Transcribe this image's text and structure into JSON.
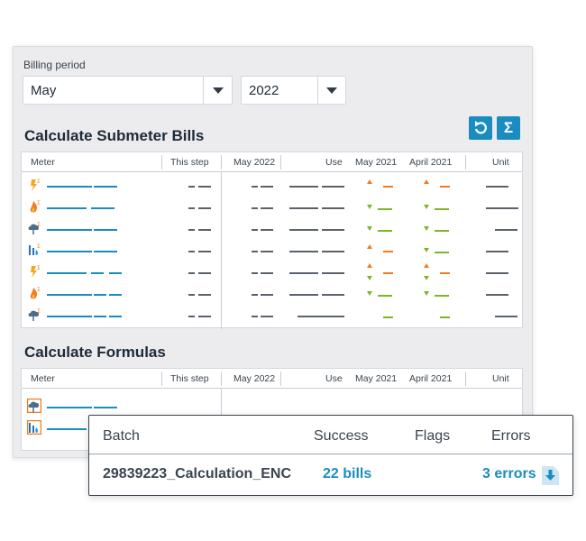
{
  "billing_period": {
    "label": "Billing period",
    "month": "May",
    "year": "2022"
  },
  "submeter_section": {
    "title": "Calculate Submeter Bills",
    "buttons": [
      {
        "name": "recalculate",
        "icon": "refresh-icon"
      },
      {
        "name": "sum",
        "icon": "sigma-icon",
        "glyph": "Σ"
      }
    ],
    "columns": [
      "Meter",
      "This step",
      "May 2022",
      "Use",
      "May 2021",
      "April 2021",
      "Unit"
    ],
    "rows": [
      {
        "icon": "electric-meter-sigma-icon",
        "may2021_trend": "up",
        "april2021_trend": "up"
      },
      {
        "icon": "gas-meter-sigma-icon",
        "may2021_trend": "down",
        "april2021_trend": "down"
      },
      {
        "icon": "cloud-meter-sigma-icon",
        "may2021_trend": "down",
        "april2021_trend": "down"
      },
      {
        "icon": "water-meter-sigma-icon",
        "may2021_trend": "up",
        "april2021_trend": "down"
      },
      {
        "icon": "electric-meter-sigma-icon",
        "may2021_trend": "up-down",
        "april2021_trend": "up-down"
      },
      {
        "icon": "gas-meter-sigma-icon",
        "may2021_trend": "down",
        "april2021_trend": "down"
      },
      {
        "icon": "cloud-meter-sigma-icon",
        "may2021_trend": "none",
        "april2021_trend": "none"
      }
    ]
  },
  "formulas_section": {
    "title": "Calculate Formulas",
    "columns": [
      "Meter",
      "This step",
      "May 2022",
      "Use",
      "May 2021",
      "April 2021",
      "Unit"
    ],
    "rows": [
      {
        "icon": "cloud-formula-icon"
      },
      {
        "icon": "water-formula-icon"
      }
    ]
  },
  "batch": {
    "headers": {
      "batch": "Batch",
      "success": "Success",
      "flags": "Flags",
      "errors": "Errors"
    },
    "row": {
      "batch": "29839223_Calculation_ENC",
      "success": "22 bills",
      "flags": "",
      "errors": "3 errors"
    },
    "download_icon": "download-icon"
  },
  "colors": {
    "accent": "#1b8cbf",
    "up_trend": "#f07d22",
    "down_trend": "#7db727",
    "text": "#1d2a38"
  }
}
